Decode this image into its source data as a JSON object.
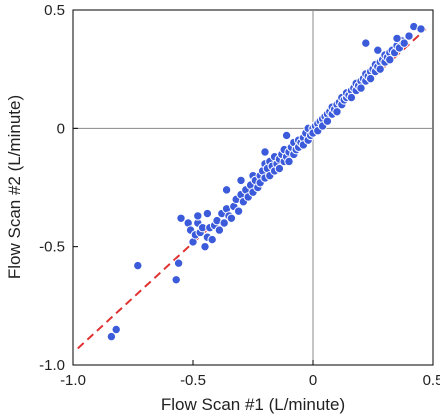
{
  "chart_data": {
    "type": "scatter",
    "title": "",
    "xlabel": "Flow Scan #1 (L/minute)",
    "ylabel": "Flow Scan #2 (L/minute)",
    "xlim": [
      -1.0,
      0.5
    ],
    "ylim": [
      -1.0,
      0.5
    ],
    "x_ticks": [
      -1.0,
      -0.5,
      0,
      0.5
    ],
    "x_tick_labels": [
      "-1.0",
      "-0.5",
      "0",
      "0.5"
    ],
    "y_ticks": [
      -1.0,
      -0.5,
      0,
      0.5
    ],
    "y_tick_labels": [
      "-1.0",
      "-0.5",
      "0",
      "0.5"
    ],
    "zero_lines": true,
    "grid": false,
    "point_color": "#3b5bdb",
    "fit_line": {
      "x": [
        -0.98,
        0.47
      ],
      "y": [
        -0.93,
        0.42
      ],
      "color": "#e03131",
      "style": "dashed"
    },
    "points": [
      [
        -0.84,
        -0.88
      ],
      [
        -0.82,
        -0.85
      ],
      [
        -0.73,
        -0.58
      ],
      [
        -0.57,
        -0.64
      ],
      [
        -0.56,
        -0.57
      ],
      [
        -0.52,
        -0.4
      ],
      [
        -0.51,
        -0.43
      ],
      [
        -0.5,
        -0.48
      ],
      [
        -0.49,
        -0.45
      ],
      [
        -0.48,
        -0.4
      ],
      [
        -0.48,
        -0.37
      ],
      [
        -0.47,
        -0.44
      ],
      [
        -0.46,
        -0.42
      ],
      [
        -0.45,
        -0.5
      ],
      [
        -0.44,
        -0.46
      ],
      [
        -0.43,
        -0.42
      ],
      [
        -0.42,
        -0.47
      ],
      [
        -0.41,
        -0.41
      ],
      [
        -0.4,
        -0.39
      ],
      [
        -0.39,
        -0.43
      ],
      [
        -0.38,
        -0.36
      ],
      [
        -0.37,
        -0.4
      ],
      [
        -0.36,
        -0.34
      ],
      [
        -0.35,
        -0.37
      ],
      [
        -0.34,
        -0.38
      ],
      [
        -0.33,
        -0.33
      ],
      [
        -0.32,
        -0.3
      ],
      [
        -0.31,
        -0.35
      ],
      [
        -0.3,
        -0.28
      ],
      [
        -0.29,
        -0.31
      ],
      [
        -0.28,
        -0.26
      ],
      [
        -0.27,
        -0.29
      ],
      [
        -0.26,
        -0.24
      ],
      [
        -0.25,
        -0.27
      ],
      [
        -0.25,
        -0.2
      ],
      [
        -0.24,
        -0.22
      ],
      [
        -0.23,
        -0.25
      ],
      [
        -0.22,
        -0.2
      ],
      [
        -0.22,
        -0.23
      ],
      [
        -0.21,
        -0.18
      ],
      [
        -0.2,
        -0.21
      ],
      [
        -0.2,
        -0.15
      ],
      [
        -0.19,
        -0.17
      ],
      [
        -0.18,
        -0.2
      ],
      [
        -0.18,
        -0.14
      ],
      [
        -0.17,
        -0.16
      ],
      [
        -0.16,
        -0.18
      ],
      [
        -0.16,
        -0.12
      ],
      [
        -0.15,
        -0.15
      ],
      [
        -0.14,
        -0.13
      ],
      [
        -0.14,
        -0.17
      ],
      [
        -0.13,
        -0.11
      ],
      [
        -0.12,
        -0.14
      ],
      [
        -0.12,
        -0.09
      ],
      [
        -0.11,
        -0.12
      ],
      [
        -0.1,
        -0.1
      ],
      [
        -0.1,
        -0.14
      ],
      [
        -0.09,
        -0.08
      ],
      [
        -0.08,
        -0.11
      ],
      [
        -0.08,
        -0.06
      ],
      [
        -0.07,
        -0.09
      ],
      [
        -0.06,
        -0.05
      ],
      [
        -0.06,
        -0.08
      ],
      [
        -0.05,
        -0.06
      ],
      [
        -0.04,
        -0.04
      ],
      [
        -0.04,
        -0.07
      ],
      [
        -0.03,
        -0.02
      ],
      [
        -0.02,
        -0.05
      ],
      [
        -0.02,
        0.0
      ],
      [
        -0.01,
        -0.03
      ],
      [
        0.0,
        0.0
      ],
      [
        0.0,
        -0.02
      ],
      [
        0.01,
        0.01
      ],
      [
        0.02,
        0.02
      ],
      [
        0.02,
        -0.01
      ],
      [
        0.03,
        0.03
      ],
      [
        0.04,
        0.04
      ],
      [
        0.04,
        0.01
      ],
      [
        0.05,
        0.05
      ],
      [
        0.06,
        0.06
      ],
      [
        0.06,
        0.03
      ],
      [
        0.07,
        0.07
      ],
      [
        0.08,
        0.06
      ],
      [
        0.08,
        0.09
      ],
      [
        0.09,
        0.08
      ],
      [
        0.1,
        0.1
      ],
      [
        0.1,
        0.07
      ],
      [
        0.11,
        0.11
      ],
      [
        0.12,
        0.1
      ],
      [
        0.12,
        0.13
      ],
      [
        0.13,
        0.12
      ],
      [
        0.14,
        0.13
      ],
      [
        0.14,
        0.15
      ],
      [
        0.15,
        0.14
      ],
      [
        0.16,
        0.16
      ],
      [
        0.16,
        0.13
      ],
      [
        0.17,
        0.17
      ],
      [
        0.18,
        0.16
      ],
      [
        0.18,
        0.19
      ],
      [
        0.19,
        0.18
      ],
      [
        0.2,
        0.2
      ],
      [
        0.2,
        0.17
      ],
      [
        0.21,
        0.21
      ],
      [
        0.22,
        0.2
      ],
      [
        0.22,
        0.23
      ],
      [
        0.23,
        0.22
      ],
      [
        0.24,
        0.24
      ],
      [
        0.24,
        0.21
      ],
      [
        0.25,
        0.25
      ],
      [
        0.26,
        0.24
      ],
      [
        0.26,
        0.27
      ],
      [
        0.27,
        0.26
      ],
      [
        0.28,
        0.28
      ],
      [
        0.28,
        0.25
      ],
      [
        0.29,
        0.29
      ],
      [
        0.3,
        0.28
      ],
      [
        0.3,
        0.31
      ],
      [
        0.31,
        0.3
      ],
      [
        0.32,
        0.32
      ],
      [
        0.32,
        0.29
      ],
      [
        0.33,
        0.33
      ],
      [
        0.34,
        0.32
      ],
      [
        0.35,
        0.35
      ],
      [
        0.36,
        0.34
      ],
      [
        0.37,
        0.37
      ],
      [
        0.38,
        0.36
      ],
      [
        0.4,
        0.39
      ],
      [
        0.42,
        0.43
      ],
      [
        0.45,
        0.42
      ],
      [
        -0.55,
        -0.38
      ],
      [
        -0.3,
        -0.22
      ],
      [
        -0.44,
        -0.36
      ],
      [
        -0.36,
        -0.26
      ],
      [
        -0.2,
        -0.1
      ],
      [
        -0.11,
        -0.03
      ],
      [
        0.22,
        0.36
      ],
      [
        0.27,
        0.33
      ],
      [
        0.35,
        0.38
      ]
    ]
  }
}
